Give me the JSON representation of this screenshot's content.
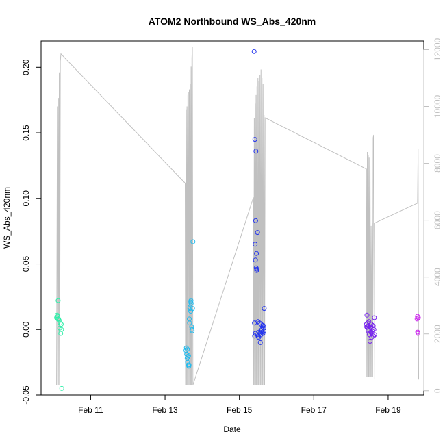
{
  "chart_data": {
    "type": "scatter",
    "title": "ATOM2 Northbound WS_Abs_420nm",
    "xlabel": "Date",
    "ylabel": "WS_Abs_420nm",
    "x_unit": "date",
    "xlim": [
      "2024-02-09T16:00",
      "2024-02-19T23:00"
    ],
    "ylim": [
      -0.05,
      0.22
    ],
    "y2lim": [
      -150,
      12300
    ],
    "x_ticks": [
      {
        "date": "2024-02-11T00:00",
        "label": "Feb 11"
      },
      {
        "date": "2024-02-13T00:00",
        "label": "Feb 13"
      },
      {
        "date": "2024-02-15T00:00",
        "label": "Feb 15"
      },
      {
        "date": "2024-02-17T00:00",
        "label": "Feb 17"
      },
      {
        "date": "2024-02-19T00:00",
        "label": "Feb 19"
      }
    ],
    "y_ticks": [
      {
        "value": -0.05,
        "label": "-0.05"
      },
      {
        "value": 0.0,
        "label": "0.00"
      },
      {
        "value": 0.05,
        "label": "0.05"
      },
      {
        "value": 0.1,
        "label": "0.10"
      },
      {
        "value": 0.15,
        "label": "0.15"
      },
      {
        "value": 0.2,
        "label": "0.20"
      }
    ],
    "y2_ticks": [
      {
        "value": 0,
        "label": "0"
      },
      {
        "value": 2000,
        "label": "2000"
      },
      {
        "value": 4000,
        "label": "4000"
      },
      {
        "value": 6000,
        "label": "6000"
      },
      {
        "value": 8000,
        "label": "8000"
      },
      {
        "value": 10000,
        "label": "10000"
      },
      {
        "value": 12000,
        "label": "12000"
      }
    ],
    "grid": false,
    "line_color": "#c0c0c0",
    "axis_color": "#000000",
    "right_axis_color": "#c0c0c0",
    "line_series": {
      "points": [
        [
          "2024-02-10T02:00",
          200
        ],
        [
          "2024-02-10T02:30",
          10000
        ],
        [
          "2024-02-10T02:45",
          200
        ],
        [
          "2024-02-10T03:10",
          10300
        ],
        [
          "2024-02-10T03:25",
          200
        ],
        [
          "2024-02-10T03:45",
          11200
        ],
        [
          "2024-02-10T04:00",
          200
        ],
        [
          "2024-02-10T04:25",
          11600
        ],
        [
          "2024-02-10T04:50",
          11850
        ],
        [
          "2024-02-13T13:00",
          7300
        ],
        [
          "2024-02-13T13:15",
          200
        ],
        [
          "2024-02-13T13:35",
          9900
        ],
        [
          "2024-02-13T13:50",
          200
        ],
        [
          "2024-02-13T14:10",
          10000
        ],
        [
          "2024-02-13T14:25",
          200
        ],
        [
          "2024-02-13T14:45",
          10400
        ],
        [
          "2024-02-13T15:05",
          10500
        ],
        [
          "2024-02-13T15:20",
          200
        ],
        [
          "2024-02-13T15:40",
          10600
        ],
        [
          "2024-02-13T15:55",
          200
        ],
        [
          "2024-02-13T16:15",
          10800
        ],
        [
          "2024-02-13T16:35",
          200
        ],
        [
          "2024-02-13T16:50",
          11400
        ],
        [
          "2024-02-13T17:05",
          200
        ],
        [
          "2024-02-13T17:20",
          11700
        ],
        [
          "2024-02-13T17:40",
          12100
        ],
        [
          "2024-02-13T18:00",
          200
        ],
        [
          "2024-02-15T09:00",
          6800
        ],
        [
          "2024-02-15T09:15",
          200
        ],
        [
          "2024-02-15T09:35",
          9600
        ],
        [
          "2024-02-15T09:50",
          200
        ],
        [
          "2024-02-15T10:10",
          10100
        ],
        [
          "2024-02-15T10:25",
          200
        ],
        [
          "2024-02-15T10:45",
          10400
        ],
        [
          "2024-02-15T11:00",
          200
        ],
        [
          "2024-02-15T11:20",
          10700
        ],
        [
          "2024-02-15T11:40",
          200
        ],
        [
          "2024-02-15T12:00",
          11000
        ],
        [
          "2024-02-15T12:15",
          200
        ],
        [
          "2024-02-15T12:35",
          10900
        ],
        [
          "2024-02-15T12:55",
          200
        ],
        [
          "2024-02-15T13:15",
          11100
        ],
        [
          "2024-02-15T13:35",
          200
        ],
        [
          "2024-02-15T13:55",
          11300
        ],
        [
          "2024-02-15T14:15",
          200
        ],
        [
          "2024-02-15T14:35",
          11000
        ],
        [
          "2024-02-15T14:55",
          200
        ],
        [
          "2024-02-15T15:15",
          10800
        ],
        [
          "2024-02-15T15:35",
          200
        ],
        [
          "2024-02-15T15:55",
          9700
        ],
        [
          "2024-02-15T16:15",
          200
        ],
        [
          "2024-02-15T16:35",
          9600
        ],
        [
          "2024-02-18T10:00",
          7800
        ],
        [
          "2024-02-18T10:15",
          500
        ],
        [
          "2024-02-18T10:35",
          8400
        ],
        [
          "2024-02-18T10:50",
          500
        ],
        [
          "2024-02-18T11:10",
          8300
        ],
        [
          "2024-02-18T11:25",
          500
        ],
        [
          "2024-02-18T11:45",
          8200
        ],
        [
          "2024-02-18T12:00",
          500
        ],
        [
          "2024-02-18T12:20",
          8050
        ],
        [
          "2024-02-18T12:40",
          500
        ],
        [
          "2024-02-18T13:00",
          5800
        ],
        [
          "2024-02-18T13:20",
          500
        ],
        [
          "2024-02-18T13:40",
          5900
        ],
        [
          "2024-02-18T14:00",
          500
        ],
        [
          "2024-02-18T14:20",
          8900
        ],
        [
          "2024-02-18T14:40",
          9000
        ],
        [
          "2024-02-18T15:00",
          400
        ],
        [
          "2024-02-18T15:20",
          5900
        ],
        [
          "2024-02-19T19:00",
          6600
        ],
        [
          "2024-02-19T19:20",
          8500
        ],
        [
          "2024-02-19T19:40",
          400
        ]
      ]
    },
    "series": [
      {
        "color": "#33eeaa",
        "points": [
          [
            "2024-02-10T02:00",
            0.009
          ],
          [
            "2024-02-10T02:20",
            0.011
          ],
          [
            "2024-02-10T02:40",
            0.01
          ],
          [
            "2024-02-10T03:00",
            0.022
          ],
          [
            "2024-02-10T03:20",
            0.008
          ],
          [
            "2024-02-10T03:40",
            0.007
          ],
          [
            "2024-02-10T04:00",
            0.001
          ],
          [
            "2024-02-10T04:20",
            0.005
          ],
          [
            "2024-02-10T04:40",
            -0.003
          ],
          [
            "2024-02-10T05:00",
            0.004
          ],
          [
            "2024-02-10T05:10",
            0.0
          ],
          [
            "2024-02-10T05:20",
            -0.045
          ],
          [
            "2024-02-10T02:50",
            0.008
          ]
        ]
      },
      {
        "color": "#22bbee",
        "points": [
          [
            "2024-02-13T13:30",
            -0.016
          ],
          [
            "2024-02-13T13:45",
            -0.014
          ],
          [
            "2024-02-13T14:00",
            -0.019
          ],
          [
            "2024-02-13T14:15",
            -0.022
          ],
          [
            "2024-02-13T14:30",
            -0.025
          ],
          [
            "2024-02-13T14:45",
            -0.021
          ],
          [
            "2024-02-13T15:00",
            -0.027
          ],
          [
            "2024-02-13T15:10",
            -0.02
          ],
          [
            "2024-02-13T15:20",
            -0.028
          ],
          [
            "2024-02-13T15:30",
            -0.027
          ],
          [
            "2024-02-13T15:40",
            0.008
          ],
          [
            "2024-02-13T15:50",
            0.005
          ],
          [
            "2024-02-13T16:05",
            0.017
          ],
          [
            "2024-02-13T16:20",
            0.021
          ],
          [
            "2024-02-13T16:35",
            0.014
          ],
          [
            "2024-02-13T16:45",
            0.022
          ],
          [
            "2024-02-13T16:55",
            0.02
          ],
          [
            "2024-02-13T17:10",
            0.002
          ],
          [
            "2024-02-13T17:20",
            0.0
          ],
          [
            "2024-02-13T17:30",
            -0.001
          ],
          [
            "2024-02-13T17:45",
            0.016
          ],
          [
            "2024-02-13T18:00",
            0.067
          ],
          [
            "2024-02-13T14:20",
            -0.015
          ],
          [
            "2024-02-13T16:00",
            0.016
          ]
        ]
      },
      {
        "color": "#2233ee",
        "points": [
          [
            "2024-02-15T09:30",
            0.212
          ],
          [
            "2024-02-15T10:00",
            0.145
          ],
          [
            "2024-02-15T10:40",
            0.136
          ],
          [
            "2024-02-15T10:30",
            0.083
          ],
          [
            "2024-02-15T11:40",
            0.074
          ],
          [
            "2024-02-15T10:10",
            0.065
          ],
          [
            "2024-02-15T11:00",
            0.058
          ],
          [
            "2024-02-15T10:20",
            0.053
          ],
          [
            "2024-02-15T10:50",
            0.047
          ],
          [
            "2024-02-15T11:10",
            0.045
          ],
          [
            "2024-02-15T11:20",
            0.046
          ],
          [
            "2024-02-15T16:00",
            0.016
          ],
          [
            "2024-02-15T09:40",
            0.005
          ],
          [
            "2024-02-15T12:00",
            0.006
          ],
          [
            "2024-02-15T13:00",
            0.005
          ],
          [
            "2024-02-15T14:00",
            0.004
          ],
          [
            "2024-02-15T15:00",
            0.002
          ],
          [
            "2024-02-15T15:20",
            0.003
          ],
          [
            "2024-02-15T15:40",
            0.001
          ],
          [
            "2024-02-15T09:50",
            -0.005
          ],
          [
            "2024-02-15T10:15",
            -0.003
          ],
          [
            "2024-02-15T11:30",
            -0.004
          ],
          [
            "2024-02-15T12:10",
            -0.005
          ],
          [
            "2024-02-15T12:40",
            -0.002
          ],
          [
            "2024-02-15T13:15",
            -0.003
          ],
          [
            "2024-02-15T13:30",
            -0.01
          ],
          [
            "2024-02-15T13:50",
            -0.004
          ],
          [
            "2024-02-15T14:15",
            -0.001
          ],
          [
            "2024-02-15T14:40",
            -0.002
          ],
          [
            "2024-02-15T15:10",
            -0.003
          ],
          [
            "2024-02-15T15:50",
            -0.001
          ],
          [
            "2024-02-15T12:25",
            -0.006
          ],
          [
            "2024-02-15T14:25",
            0.0
          ]
        ]
      },
      {
        "color": "#7722ee",
        "points": [
          [
            "2024-02-18T10:00",
            0.004
          ],
          [
            "2024-02-18T10:20",
            0.011
          ],
          [
            "2024-02-18T10:35",
            0.002
          ],
          [
            "2024-02-18T10:50",
            0.005
          ],
          [
            "2024-02-18T11:05",
            -0.001
          ],
          [
            "2024-02-18T11:20",
            0.003
          ],
          [
            "2024-02-18T11:35",
            0.006
          ],
          [
            "2024-02-18T11:50",
            -0.004
          ],
          [
            "2024-02-18T12:05",
            0.0
          ],
          [
            "2024-02-18T12:20",
            -0.009
          ],
          [
            "2024-02-18T12:35",
            0.002
          ],
          [
            "2024-02-18T12:50",
            -0.002
          ],
          [
            "2024-02-18T13:05",
            0.004
          ],
          [
            "2024-02-18T13:20",
            -0.006
          ],
          [
            "2024-02-18T13:35",
            0.001
          ],
          [
            "2024-02-18T13:50",
            -0.003
          ],
          [
            "2024-02-18T14:05",
            -0.001
          ],
          [
            "2024-02-18T14:20",
            0.003
          ],
          [
            "2024-02-18T14:35",
            -0.005
          ],
          [
            "2024-02-18T14:50",
            0.0
          ],
          [
            "2024-02-18T15:05",
            0.009
          ],
          [
            "2024-02-18T15:20",
            -0.004
          ],
          [
            "2024-02-18T10:10",
            0.002
          ],
          [
            "2024-02-18T11:00",
            0.0
          ]
        ]
      },
      {
        "color": "#cc22ee",
        "points": [
          [
            "2024-02-19T18:40",
            0.008
          ],
          [
            "2024-02-19T18:55",
            0.01
          ],
          [
            "2024-02-19T19:05",
            -0.002
          ],
          [
            "2024-02-19T19:15",
            -0.003
          ],
          [
            "2024-02-19T19:30",
            0.009
          ]
        ]
      }
    ]
  }
}
